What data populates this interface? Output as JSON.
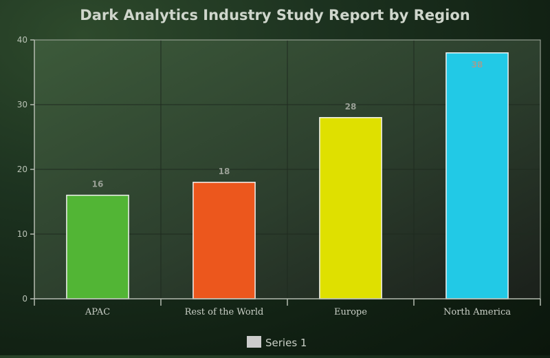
{
  "chart_data": {
    "type": "bar",
    "title": "Dark Analytics Industry Study Report by Region",
    "categories": [
      "APAC",
      "Rest of the World",
      "Europe",
      "North America"
    ],
    "series": [
      {
        "name": "Series 1",
        "values": [
          16,
          18,
          28,
          38
        ]
      }
    ],
    "bar_colors": [
      "#52b535",
      "#ec571d",
      "#dfe000",
      "#22c9e6"
    ],
    "ylim": [
      0,
      40
    ],
    "yticks": [
      0,
      10,
      20,
      30,
      40
    ],
    "grid": true,
    "legend_position": "bottom-center",
    "legend_swatch_color": "#cccccc"
  }
}
